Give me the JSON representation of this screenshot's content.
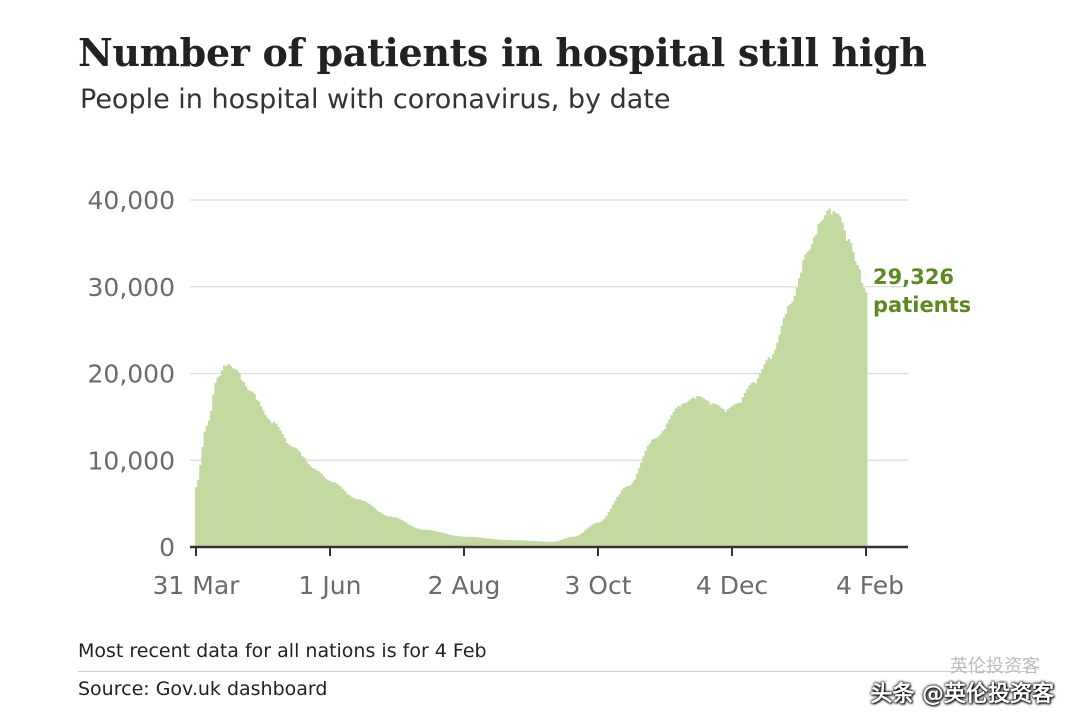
{
  "title": "Number of patients in hospital still high",
  "subtitle": "People in hospital with coronavirus, by date",
  "footer": {
    "note": "Most recent data for all nations is for 4 Feb",
    "source": "Source: Gov.uk dashboard"
  },
  "watermark": {
    "main": "头条 @英伦投资客",
    "faint": "英伦投资客"
  },
  "chart_data": {
    "type": "bar",
    "title": "Number of patients in hospital still high",
    "subtitle": "People in hospital with coronavirus, by date",
    "xlabel": "",
    "ylabel": "",
    "ylim": [
      0,
      40000
    ],
    "y_ticks": [
      0,
      10000,
      20000,
      30000,
      40000
    ],
    "y_tick_labels": [
      "0",
      "10,000",
      "20,000",
      "30,000",
      "40,000"
    ],
    "x_tick_labels": [
      "31 Mar",
      "1 Jun",
      "2 Aug",
      "3 Oct",
      "4 Dec",
      "4 Feb"
    ],
    "x_tick_day_index": [
      0,
      62,
      124,
      186,
      248,
      310
    ],
    "grid": true,
    "bar_color": "#c2d9a0",
    "series": [
      {
        "name": "People in hospital",
        "keypoints": [
          {
            "day": 0,
            "value": 7000
          },
          {
            "day": 5,
            "value": 14000
          },
          {
            "day": 10,
            "value": 19500
          },
          {
            "day": 14,
            "value": 21200
          },
          {
            "day": 18,
            "value": 20500
          },
          {
            "day": 25,
            "value": 18000
          },
          {
            "day": 35,
            "value": 14500
          },
          {
            "day": 45,
            "value": 11500
          },
          {
            "day": 55,
            "value": 9000
          },
          {
            "day": 62,
            "value": 7600
          },
          {
            "day": 75,
            "value": 5500
          },
          {
            "day": 90,
            "value": 3500
          },
          {
            "day": 105,
            "value": 2000
          },
          {
            "day": 124,
            "value": 1200
          },
          {
            "day": 145,
            "value": 800
          },
          {
            "day": 165,
            "value": 600
          },
          {
            "day": 175,
            "value": 1200
          },
          {
            "day": 186,
            "value": 2800
          },
          {
            "day": 200,
            "value": 7000
          },
          {
            "day": 212,
            "value": 12500
          },
          {
            "day": 225,
            "value": 16500
          },
          {
            "day": 232,
            "value": 17400
          },
          {
            "day": 240,
            "value": 16500
          },
          {
            "day": 245,
            "value": 15800
          },
          {
            "day": 250,
            "value": 16500
          },
          {
            "day": 258,
            "value": 19000
          },
          {
            "day": 266,
            "value": 22000
          },
          {
            "day": 275,
            "value": 28000
          },
          {
            "day": 283,
            "value": 34000
          },
          {
            "day": 289,
            "value": 37500
          },
          {
            "day": 293,
            "value": 39000
          },
          {
            "day": 297,
            "value": 38400
          },
          {
            "day": 302,
            "value": 35500
          },
          {
            "day": 306,
            "value": 32500
          },
          {
            "day": 310,
            "value": 29326
          }
        ]
      }
    ],
    "annotation": {
      "value": "29,326",
      "label": "patients",
      "color": "#5b8a1e"
    }
  }
}
